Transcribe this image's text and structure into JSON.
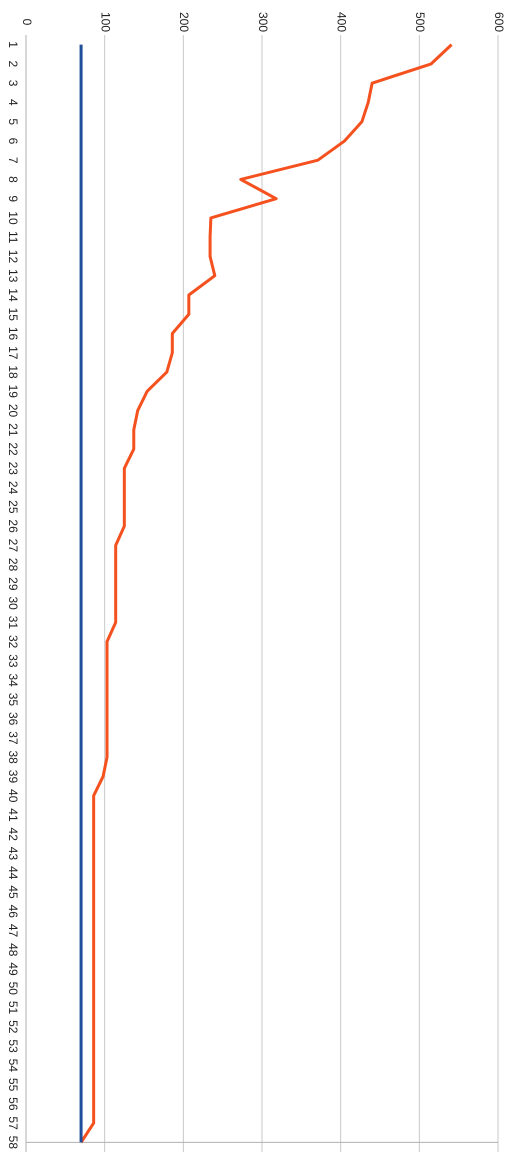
{
  "chart_data": {
    "type": "line",
    "orientation": "horizontal",
    "categories": [
      "1",
      "2",
      "3",
      "4",
      "5",
      "6",
      "7",
      "8",
      "9",
      "10",
      "11",
      "12",
      "13",
      "14",
      "15",
      "16",
      "17",
      "18",
      "19",
      "20",
      "21",
      "22",
      "23",
      "24",
      "25",
      "26",
      "27",
      "28",
      "29",
      "30",
      "31",
      "32",
      "33",
      "34",
      "35",
      "36",
      "37",
      "38",
      "39",
      "40",
      "41",
      "42",
      "43",
      "44",
      "45",
      "46",
      "47",
      "48",
      "49",
      "50",
      "51",
      "52",
      "53",
      "54",
      "55",
      "56",
      "57",
      "58"
    ],
    "series": [
      {
        "color": "#f4511e",
        "values": [
          541,
          515,
          440,
          435,
          427,
          405,
          371,
          273,
          318,
          235,
          234,
          234,
          240,
          207,
          207,
          186,
          186,
          179,
          154,
          142,
          137,
          137,
          125,
          125,
          125,
          125,
          114,
          114,
          114,
          114,
          114,
          103,
          103,
          103,
          103,
          103,
          103,
          103,
          98,
          86,
          86,
          86,
          86,
          86,
          86,
          86,
          86,
          86,
          86,
          86,
          86,
          86,
          86,
          86,
          86,
          86,
          86,
          70
        ]
      },
      {
        "color": "#1f4e9a",
        "values": [
          70,
          70,
          70,
          70,
          70,
          70,
          70,
          70,
          70,
          70,
          70,
          70,
          70,
          70,
          70,
          70,
          70,
          70,
          70,
          70,
          70,
          70,
          70,
          70,
          70,
          70,
          70,
          70,
          70,
          70,
          70,
          70,
          70,
          70,
          70,
          70,
          70,
          70,
          70,
          70,
          70,
          70,
          70,
          70,
          70,
          70,
          70,
          70,
          70,
          70,
          70,
          70,
          70,
          70,
          70,
          70,
          70,
          70
        ]
      }
    ],
    "ylim": [
      0,
      600
    ],
    "yticks": [
      0,
      100,
      200,
      300,
      400,
      500,
      600
    ],
    "grid": true
  }
}
